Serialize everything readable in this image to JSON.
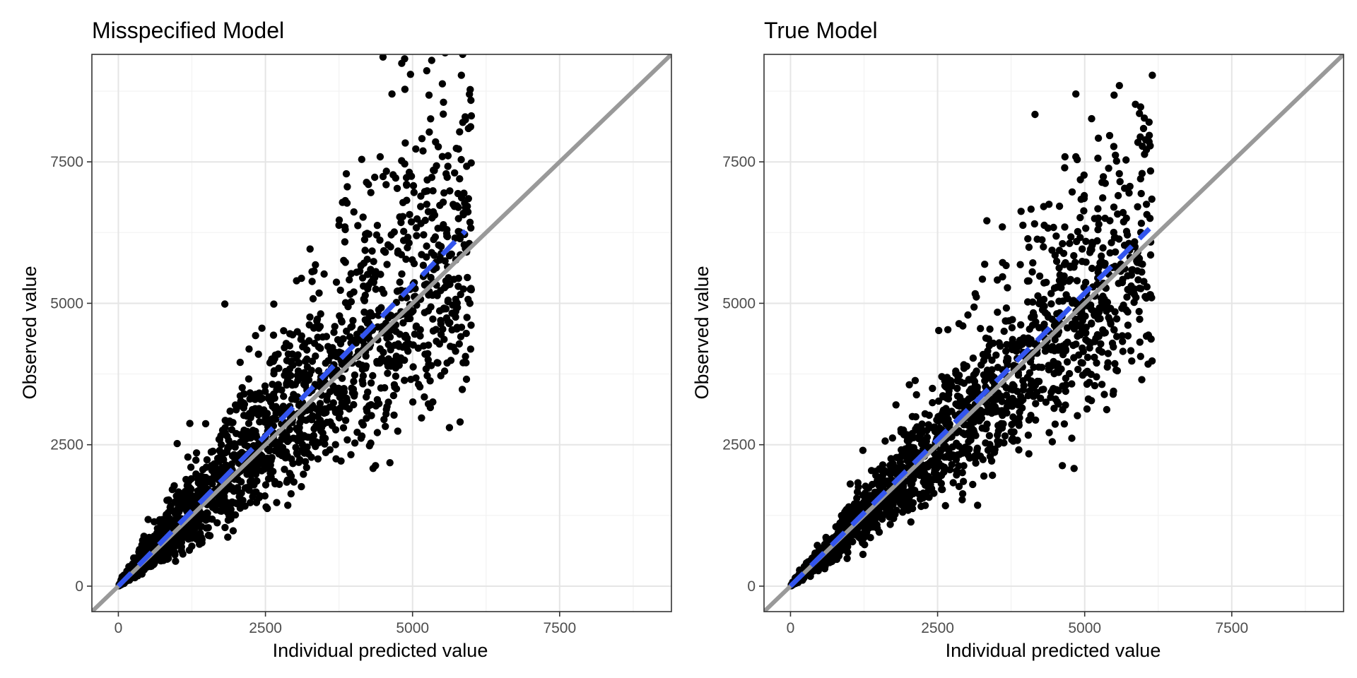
{
  "colors": {
    "background": "#ffffff",
    "panel_border": "#333333",
    "grid_major": "#e5e5e5",
    "grid_minor": "#f2f2f2",
    "points": "#000000",
    "identity_line": "#999999",
    "smooth_line": "#3355ee"
  },
  "chart_data": [
    {
      "type": "scatter",
      "title": "Misspecified Model",
      "xlabel": "Individual predicted value",
      "ylabel": "Observed value",
      "xlim": [
        -450,
        9400
      ],
      "ylim": [
        -450,
        9400
      ],
      "xticks": [
        0,
        2500,
        5000,
        7500
      ],
      "yticks": [
        0,
        2500,
        5000,
        7500
      ],
      "xtick_labels": [
        "0",
        "2500",
        "5000",
        "7500"
      ],
      "ytick_labels": [
        "0",
        "2500",
        "5000",
        "7500"
      ],
      "grid": true,
      "reference_line": {
        "type": "identity",
        "intercept": 0,
        "slope": 1,
        "style": "solid",
        "color": "#999999"
      },
      "trend_line": {
        "x": [
          0,
          5900
        ],
        "y": [
          0,
          6280
        ],
        "style": "dashed",
        "color": "#3355ee"
      },
      "cloud": {
        "n": 2200,
        "x_max": 6000,
        "slope": 1.04,
        "spread": 0.26,
        "seed": 11
      },
      "points": [
        [
          4650,
          8700
        ],
        [
          5280,
          8680
        ],
        [
          5830,
          9030
        ],
        [
          5950,
          8090
        ],
        [
          4450,
          7590
        ],
        [
          5600,
          7420
        ],
        [
          5250,
          7180
        ],
        [
          5800,
          7200
        ],
        [
          4250,
          7100
        ],
        [
          4900,
          6820
        ],
        [
          5950,
          6850
        ],
        [
          3750,
          6380
        ],
        [
          3850,
          6350
        ],
        [
          3350,
          5680
        ],
        [
          2440,
          4560
        ],
        [
          5270,
          4260
        ],
        [
          5820,
          4410
        ],
        [
          5900,
          4060
        ],
        [
          5860,
          3950
        ],
        [
          5250,
          3720
        ],
        [
          4370,
          2130
        ],
        [
          4330,
          2080
        ],
        [
          2880,
          1430
        ],
        [
          1000,
          2520
        ],
        [
          4020,
          2530
        ],
        [
          3700,
          2250
        ]
      ]
    },
    {
      "type": "scatter",
      "title": "True Model",
      "xlabel": "Individual predicted value",
      "ylabel": "Observed value",
      "xlim": [
        -450,
        9400
      ],
      "ylim": [
        -450,
        9400
      ],
      "xticks": [
        0,
        2500,
        5000,
        7500
      ],
      "yticks": [
        0,
        2500,
        5000,
        7500
      ],
      "xtick_labels": [
        "0",
        "2500",
        "5000",
        "7500"
      ],
      "ytick_labels": [
        "0",
        "2500",
        "5000",
        "7500"
      ],
      "grid": true,
      "reference_line": {
        "type": "identity",
        "intercept": 0,
        "slope": 1,
        "style": "solid",
        "color": "#999999"
      },
      "trend_line": {
        "x": [
          0,
          6100
        ],
        "y": [
          0,
          6320
        ],
        "style": "dashed",
        "color": "#3355ee"
      },
      "cloud": {
        "n": 2200,
        "x_max": 6150,
        "slope": 0.98,
        "spread": 0.21,
        "seed": 23
      },
      "points": [
        [
          4850,
          8700
        ],
        [
          5500,
          8680
        ],
        [
          6150,
          9030
        ],
        [
          6000,
          8090
        ],
        [
          4850,
          7590
        ],
        [
          5350,
          7120
        ],
        [
          5600,
          7150
        ],
        [
          5950,
          7200
        ],
        [
          6050,
          6750
        ],
        [
          3600,
          6350
        ],
        [
          3950,
          6380
        ],
        [
          3300,
          5690
        ],
        [
          2520,
          4520
        ],
        [
          5650,
          4150
        ],
        [
          6050,
          4420
        ],
        [
          5950,
          4060
        ],
        [
          5200,
          3700
        ],
        [
          4620,
          2130
        ],
        [
          4820,
          2080
        ],
        [
          3180,
          1430
        ],
        [
          1230,
          2400
        ],
        [
          5800,
          3980
        ]
      ]
    }
  ]
}
